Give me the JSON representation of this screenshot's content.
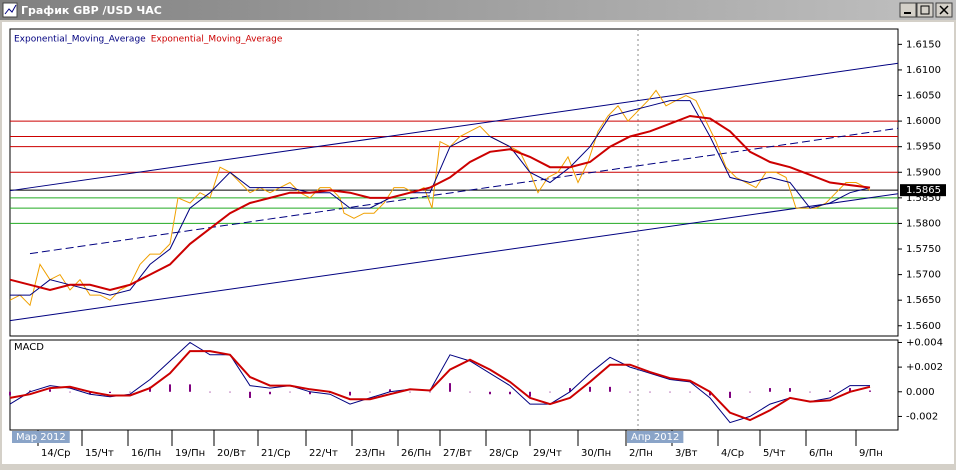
{
  "window": {
    "title": "График GBP /USD ЧАС"
  },
  "chart_data": [
    {
      "type": "price",
      "xlim": [
        0,
        444
      ],
      "ylim": [
        1.558,
        1.618
      ],
      "yticks": [
        {
          "value": 1.56,
          "label": "1.5600"
        },
        {
          "value": 1.565,
          "label": "1.5650"
        },
        {
          "value": 1.57,
          "label": "1.5700"
        },
        {
          "value": 1.575,
          "label": "1.5750"
        },
        {
          "value": 1.58,
          "label": "1.5800"
        },
        {
          "value": 1.585,
          "label": "1.5850"
        },
        {
          "value": 1.59,
          "label": "1.5900"
        },
        {
          "value": 1.595,
          "label": "1.5950"
        },
        {
          "value": 1.6,
          "label": "1.6000"
        },
        {
          "value": 1.605,
          "label": "1.6050"
        },
        {
          "value": 1.61,
          "label": "1.6100"
        },
        {
          "value": 1.615,
          "label": "1.6150"
        }
      ],
      "xticks": [
        {
          "value": 14,
          "label": "14/Ср"
        },
        {
          "value": 36,
          "label": "15/Чт"
        },
        {
          "value": 59,
          "label": "16/Пн"
        },
        {
          "value": 81,
          "label": "19/Пн"
        },
        {
          "value": 102,
          "label": "20/Вт"
        },
        {
          "value": 124,
          "label": "21/Ср"
        },
        {
          "value": 148,
          "label": "22/Чт"
        },
        {
          "value": 171,
          "label": "23/Пн"
        },
        {
          "value": 194,
          "label": "26/Пн"
        },
        {
          "value": 215,
          "label": "27/Вт"
        },
        {
          "value": 238,
          "label": "28/Ср"
        },
        {
          "value": 260,
          "label": "29/Чт"
        },
        {
          "value": 284,
          "label": "30/Пн"
        },
        {
          "value": 308,
          "label": "2/Пн"
        },
        {
          "value": 331,
          "label": "3/Вт"
        },
        {
          "value": 354,
          "label": "4/Ср"
        },
        {
          "value": 375,
          "label": "5/Чт"
        },
        {
          "value": 398,
          "label": "6/Пн"
        },
        {
          "value": 423,
          "label": "9/Пн"
        }
      ],
      "period_labels": [
        {
          "value": 0,
          "label": "Мар 2012"
        },
        {
          "value": 314,
          "label": "Апр 2012"
        }
      ],
      "price": {
        "color": "#f0a000",
        "x": [
          0,
          5,
          10,
          15,
          20,
          25,
          30,
          35,
          40,
          45,
          50,
          55,
          60,
          65,
          70,
          75,
          80,
          84,
          90,
          95,
          100,
          105,
          110,
          115,
          120,
          125,
          130,
          135,
          140,
          145,
          150,
          155,
          160,
          165,
          167,
          172,
          177,
          182,
          187,
          192,
          197,
          202,
          207,
          211,
          215,
          220,
          225,
          230,
          235,
          240,
          245,
          250,
          255,
          260,
          264,
          269,
          274,
          279,
          284,
          289,
          294,
          299,
          304,
          309,
          314,
          319,
          323,
          328,
          333,
          338,
          343,
          348,
          353,
          358,
          363,
          368,
          373,
          378,
          383,
          388,
          393,
          398,
          403,
          408,
          413,
          418,
          423,
          428,
          430
        ],
        "values": [
          1.565,
          1.566,
          1.564,
          1.572,
          1.569,
          1.57,
          1.567,
          1.569,
          1.566,
          1.566,
          1.565,
          1.567,
          1.568,
          1.572,
          1.574,
          1.574,
          1.576,
          1.585,
          1.584,
          1.586,
          1.585,
          1.591,
          1.59,
          1.588,
          1.586,
          1.587,
          1.586,
          1.587,
          1.588,
          1.586,
          1.585,
          1.587,
          1.587,
          1.585,
          1.582,
          1.581,
          1.582,
          1.582,
          1.584,
          1.587,
          1.587,
          1.586,
          1.587,
          1.583,
          1.596,
          1.595,
          1.597,
          1.598,
          1.599,
          1.597,
          1.596,
          1.595,
          1.594,
          1.59,
          1.586,
          1.589,
          1.59,
          1.593,
          1.588,
          1.592,
          1.598,
          1.601,
          1.603,
          1.6,
          1.602,
          1.604,
          1.606,
          1.603,
          1.604,
          1.605,
          1.604,
          1.6,
          1.596,
          1.591,
          1.589,
          1.588,
          1.587,
          1.59,
          1.59,
          1.589,
          1.583,
          1.583,
          1.583,
          1.584,
          1.586,
          1.588,
          1.588,
          1.587,
          1.5865
        ]
      },
      "series": [
        {
          "name": "Exponential_Moving_Average",
          "color": "#000080",
          "width": 1,
          "x": [
            0,
            10,
            20,
            30,
            40,
            50,
            60,
            70,
            80,
            90,
            100,
            110,
            120,
            130,
            140,
            150,
            160,
            170,
            180,
            190,
            200,
            210,
            220,
            230,
            240,
            250,
            260,
            270,
            280,
            290,
            300,
            310,
            320,
            330,
            340,
            350,
            360,
            370,
            380,
            390,
            400,
            410,
            420,
            430
          ],
          "values": [
            1.566,
            1.566,
            1.569,
            1.568,
            1.567,
            1.566,
            1.567,
            1.572,
            1.575,
            1.583,
            1.586,
            1.59,
            1.587,
            1.587,
            1.587,
            1.586,
            1.586,
            1.583,
            1.583,
            1.585,
            1.586,
            1.586,
            1.595,
            1.597,
            1.597,
            1.595,
            1.59,
            1.588,
            1.591,
            1.595,
            1.601,
            1.602,
            1.603,
            1.604,
            1.604,
            1.597,
            1.589,
            1.588,
            1.589,
            1.588,
            1.583,
            1.584,
            1.586,
            1.587
          ]
        },
        {
          "name": "Exponential_Moving_Average",
          "color": "#cc0000",
          "width": 2,
          "x": [
            0,
            10,
            20,
            30,
            40,
            50,
            60,
            70,
            80,
            90,
            100,
            110,
            120,
            130,
            140,
            150,
            160,
            170,
            180,
            190,
            200,
            210,
            220,
            230,
            240,
            250,
            260,
            270,
            280,
            290,
            300,
            310,
            320,
            330,
            340,
            350,
            360,
            370,
            380,
            390,
            400,
            410,
            420,
            430
          ],
          "values": [
            1.569,
            1.568,
            1.567,
            1.568,
            1.568,
            1.567,
            1.568,
            1.57,
            1.572,
            1.576,
            1.579,
            1.582,
            1.584,
            1.585,
            1.586,
            1.586,
            1.5865,
            1.586,
            1.585,
            1.585,
            1.586,
            1.587,
            1.589,
            1.592,
            1.594,
            1.5945,
            1.593,
            1.591,
            1.591,
            1.592,
            1.595,
            1.597,
            1.598,
            1.5995,
            1.601,
            1.6005,
            1.598,
            1.594,
            1.592,
            1.591,
            1.5895,
            1.588,
            1.5875,
            1.587
          ]
        }
      ],
      "hlines": [
        {
          "value": 1.6,
          "color": "#cc0000"
        },
        {
          "value": 1.597,
          "color": "#cc0000"
        },
        {
          "value": 1.595,
          "color": "#cc0000"
        },
        {
          "value": 1.59,
          "color": "#cc0000"
        },
        {
          "value": 1.5865,
          "color": "#000000"
        },
        {
          "value": 1.585,
          "color": "#22aa22"
        },
        {
          "value": 1.583,
          "color": "#22aa22"
        },
        {
          "value": 1.58,
          "color": "#22aa22"
        }
      ],
      "trendlines": [
        {
          "x": [
            0,
            444
          ],
          "y": [
            1.5864,
            1.6113
          ],
          "color": "#000080",
          "dashed": false
        },
        {
          "x": [
            10,
            444
          ],
          "y": [
            1.5741,
            1.5986
          ],
          "color": "#000080",
          "dashed": true
        },
        {
          "x": [
            0,
            444
          ],
          "y": [
            1.561,
            1.5858
          ],
          "color": "#000080",
          "dashed": false
        }
      ],
      "current_price": 1.5865
    },
    {
      "type": "macd",
      "title": "MACD",
      "xlim": [
        0,
        444
      ],
      "ylim": [
        -0.0031,
        0.0042
      ],
      "yticks": [
        {
          "value": 0.004,
          "label": "+0.004"
        },
        {
          "value": 0.002,
          "label": "+0.002"
        },
        {
          "value": 0,
          "label": "0.000"
        },
        {
          "value": -0.002,
          "label": "-0.002"
        }
      ],
      "histogram": {
        "color": "#800080",
        "x": [
          0,
          10,
          20,
          30,
          40,
          50,
          60,
          70,
          80,
          90,
          100,
          110,
          120,
          130,
          140,
          150,
          160,
          170,
          180,
          190,
          200,
          210,
          220,
          230,
          240,
          250,
          260,
          270,
          280,
          290,
          300,
          310,
          320,
          330,
          340,
          350,
          360,
          370,
          380,
          390,
          400,
          410,
          420,
          430
        ],
        "values": [
          -0.0003,
          0.0001,
          0.0002,
          0,
          -0.0002,
          -0.0001,
          0,
          0.0004,
          0.0006,
          0.0006,
          0,
          0,
          -0.0005,
          -0.0002,
          0,
          -0.0002,
          -0.0001,
          -0.0003,
          0,
          0.0002,
          0,
          0,
          0.0007,
          0,
          -0.0002,
          -0.0002,
          -0.0004,
          0,
          0.0003,
          0.0004,
          0.0004,
          0,
          0,
          0,
          0,
          -0.0003,
          -0.0005,
          0,
          0.0003,
          0.0003,
          0,
          0.0001,
          0.0003,
          0.0001
        ]
      },
      "series": [
        {
          "color": "#000080",
          "width": 1,
          "x": [
            0,
            10,
            20,
            30,
            40,
            50,
            60,
            70,
            80,
            90,
            100,
            110,
            120,
            130,
            140,
            150,
            160,
            170,
            180,
            190,
            200,
            210,
            220,
            230,
            240,
            250,
            260,
            270,
            280,
            290,
            300,
            310,
            320,
            330,
            340,
            350,
            360,
            370,
            380,
            390,
            400,
            410,
            420,
            430
          ],
          "values": [
            -0.001,
            0,
            0.0005,
            0.0003,
            -0.0002,
            -0.0004,
            -0.0002,
            0.001,
            0.0025,
            0.004,
            0.003,
            0.003,
            0.0005,
            0.0003,
            0.0005,
            0,
            -0.0002,
            -0.001,
            -0.0005,
            0,
            0.0002,
            0.0001,
            0.003,
            0.0025,
            0.0015,
            0.0005,
            -0.001,
            -0.001,
            0,
            0.0015,
            0.0028,
            0.002,
            0.0015,
            0.001,
            0.0008,
            -0.0005,
            -0.0025,
            -0.002,
            -0.001,
            -0.0005,
            -0.0008,
            -0.0005,
            0.0005,
            0.0005
          ]
        },
        {
          "color": "#cc0000",
          "width": 2,
          "x": [
            0,
            10,
            20,
            30,
            40,
            50,
            60,
            70,
            80,
            90,
            100,
            110,
            120,
            130,
            140,
            150,
            160,
            170,
            180,
            190,
            200,
            210,
            220,
            230,
            240,
            250,
            260,
            270,
            280,
            290,
            300,
            310,
            320,
            330,
            340,
            350,
            360,
            370,
            380,
            390,
            400,
            410,
            420,
            430
          ],
          "values": [
            -0.0005,
            -0.0002,
            0.0003,
            0.0004,
            0,
            -0.0003,
            -0.0003,
            0.0003,
            0.0015,
            0.0033,
            0.0033,
            0.003,
            0.0012,
            0.0005,
            0.0005,
            0.0002,
            0,
            -0.0006,
            -0.0006,
            -0.0002,
            0.0002,
            0.0001,
            0.0018,
            0.0026,
            0.0018,
            0.0008,
            -0.0005,
            -0.001,
            -0.0005,
            0.0008,
            0.0022,
            0.0022,
            0.0016,
            0.0011,
            0.0009,
            0,
            -0.0017,
            -0.0023,
            -0.0015,
            -0.0005,
            -0.0008,
            -0.0007,
            0,
            0.0004
          ]
        }
      ]
    }
  ]
}
